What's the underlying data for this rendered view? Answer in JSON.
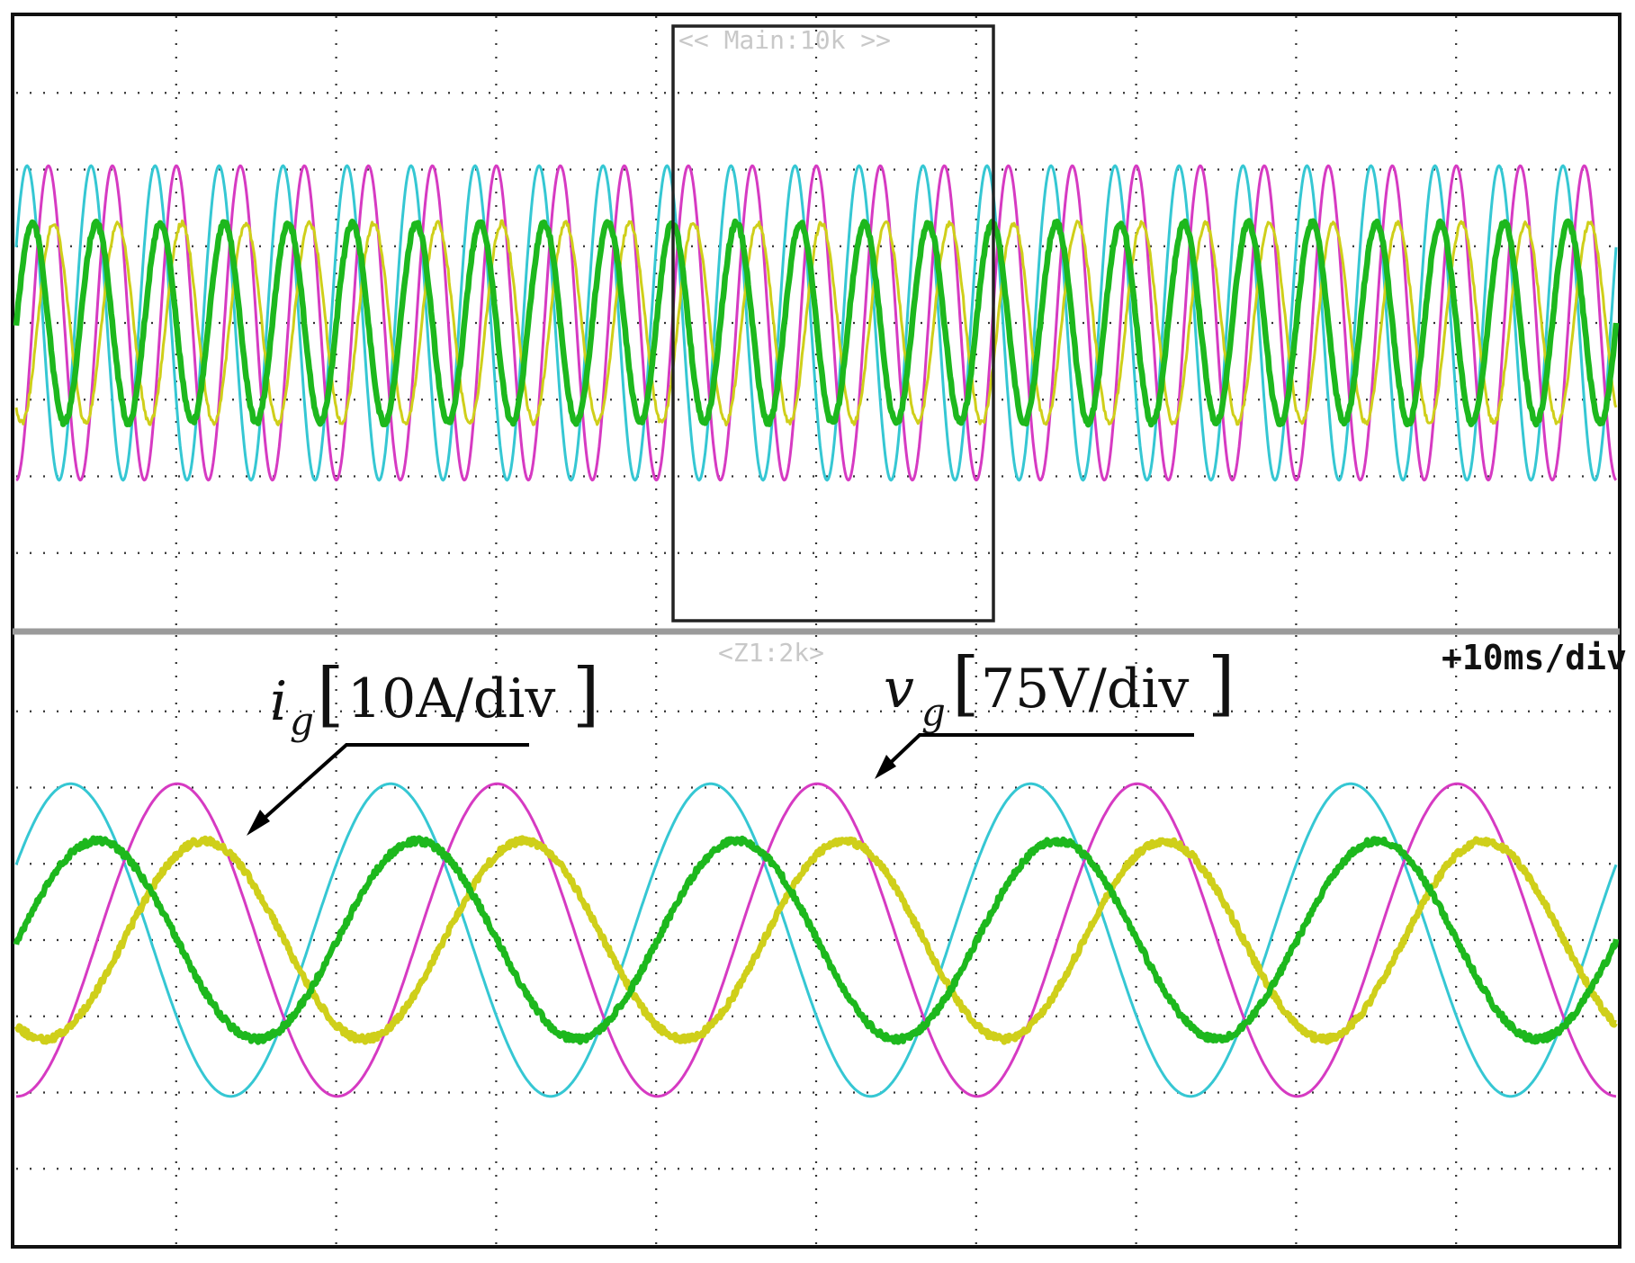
{
  "scope": {
    "main_zoom_label": "<< Main:10k >>",
    "zoom_label": "<Z1:2k>",
    "timebase": "+10ms/div"
  },
  "annotations": {
    "current": {
      "symbol": "i",
      "subscript": "g",
      "scale": "10A/div"
    },
    "voltage": {
      "symbol": "v",
      "subscript": "g",
      "scale": "75V/div"
    }
  },
  "colors": {
    "cyan": "#35c7d3",
    "magenta": "#d63ac2",
    "yellow": "#cfcf1a",
    "green": "#1db81d"
  },
  "chart_data": [
    {
      "type": "line",
      "title": "",
      "xlabel": "",
      "ylabel": "",
      "panel": "main (overview)",
      "divisions": {
        "x": 10,
        "y": 8
      },
      "x_unit": "div",
      "cycles_shown": 25,
      "series": [
        {
          "color": "cyan",
          "amplitude_div": 2.05,
          "phase_deg": 0
        },
        {
          "color": "magenta",
          "amplitude_div": 2.05,
          "phase_deg": -120
        },
        {
          "color": "yellow",
          "amplitude_div": 1.3,
          "phase_deg": -150
        },
        {
          "color": "green",
          "amplitude_div": 1.3,
          "phase_deg": -30
        }
      ]
    },
    {
      "type": "line",
      "title": "",
      "xlabel": "",
      "ylabel": "",
      "panel": "zoom (Z1:2k)",
      "divisions": {
        "x": 10,
        "y": 8
      },
      "x_unit": "div",
      "cycles_shown": 5,
      "series": [
        {
          "color": "cyan",
          "amplitude_div": 2.05,
          "phase_deg": 0
        },
        {
          "color": "magenta",
          "amplitude_div": 2.05,
          "phase_deg": -120
        },
        {
          "color": "yellow",
          "amplitude_div": 1.3,
          "phase_deg": -150
        },
        {
          "color": "green",
          "amplitude_div": 1.3,
          "phase_deg": -30
        }
      ]
    }
  ]
}
